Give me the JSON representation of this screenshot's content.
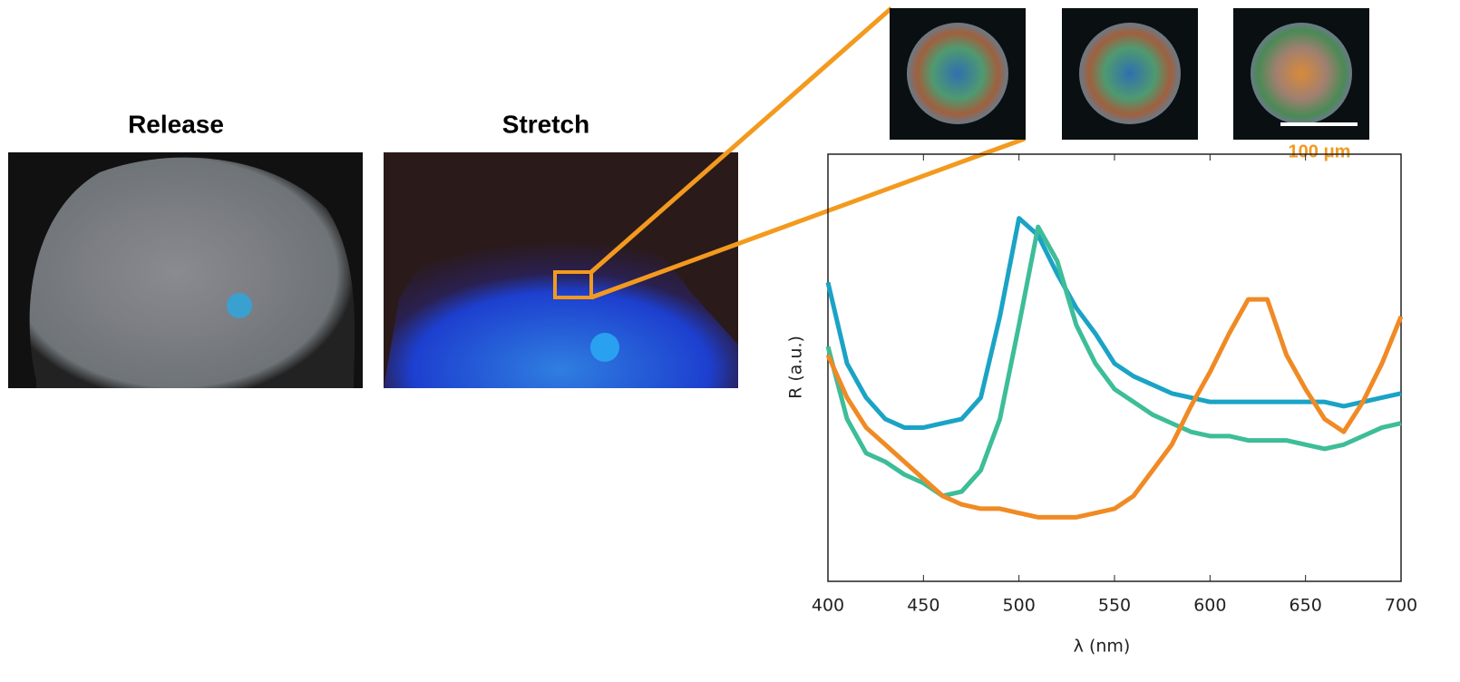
{
  "panels": {
    "release_label": "Release",
    "stretch_label": "Stretch",
    "scale_bar": "100 μm"
  },
  "chart_data": {
    "type": "line",
    "x_label": "λ (nm)",
    "y_label": "R (a.u.)",
    "x": [
      400,
      410,
      420,
      430,
      440,
      450,
      460,
      470,
      480,
      490,
      500,
      510,
      520,
      530,
      540,
      550,
      560,
      570,
      580,
      590,
      600,
      610,
      620,
      630,
      640,
      650,
      660,
      670,
      680,
      690,
      700
    ],
    "xlim": [
      400,
      700
    ],
    "xticks": [
      400,
      450,
      500,
      550,
      600,
      650,
      700
    ],
    "ylim": [
      0,
      1
    ],
    "series": [
      {
        "color": "#1ba3c6",
        "values": [
          0.7,
          0.51,
          0.43,
          0.38,
          0.36,
          0.36,
          0.37,
          0.38,
          0.43,
          0.62,
          0.85,
          0.81,
          0.72,
          0.64,
          0.58,
          0.51,
          0.48,
          0.46,
          0.44,
          0.43,
          0.42,
          0.42,
          0.42,
          0.42,
          0.42,
          0.42,
          0.42,
          0.41,
          0.42,
          0.43,
          0.44
        ]
      },
      {
        "color": "#3dbd98",
        "values": [
          0.55,
          0.38,
          0.3,
          0.28,
          0.25,
          0.23,
          0.2,
          0.21,
          0.26,
          0.38,
          0.6,
          0.83,
          0.75,
          0.6,
          0.51,
          0.45,
          0.42,
          0.39,
          0.37,
          0.35,
          0.34,
          0.34,
          0.33,
          0.33,
          0.33,
          0.32,
          0.31,
          0.32,
          0.34,
          0.36,
          0.37
        ]
      },
      {
        "color": "#f08a24",
        "values": [
          0.53,
          0.43,
          0.36,
          0.32,
          0.28,
          0.24,
          0.2,
          0.18,
          0.17,
          0.17,
          0.16,
          0.15,
          0.15,
          0.15,
          0.16,
          0.17,
          0.2,
          0.26,
          0.32,
          0.41,
          0.49,
          0.58,
          0.66,
          0.66,
          0.53,
          0.45,
          0.38,
          0.35,
          0.42,
          0.51,
          0.62
        ]
      }
    ]
  }
}
